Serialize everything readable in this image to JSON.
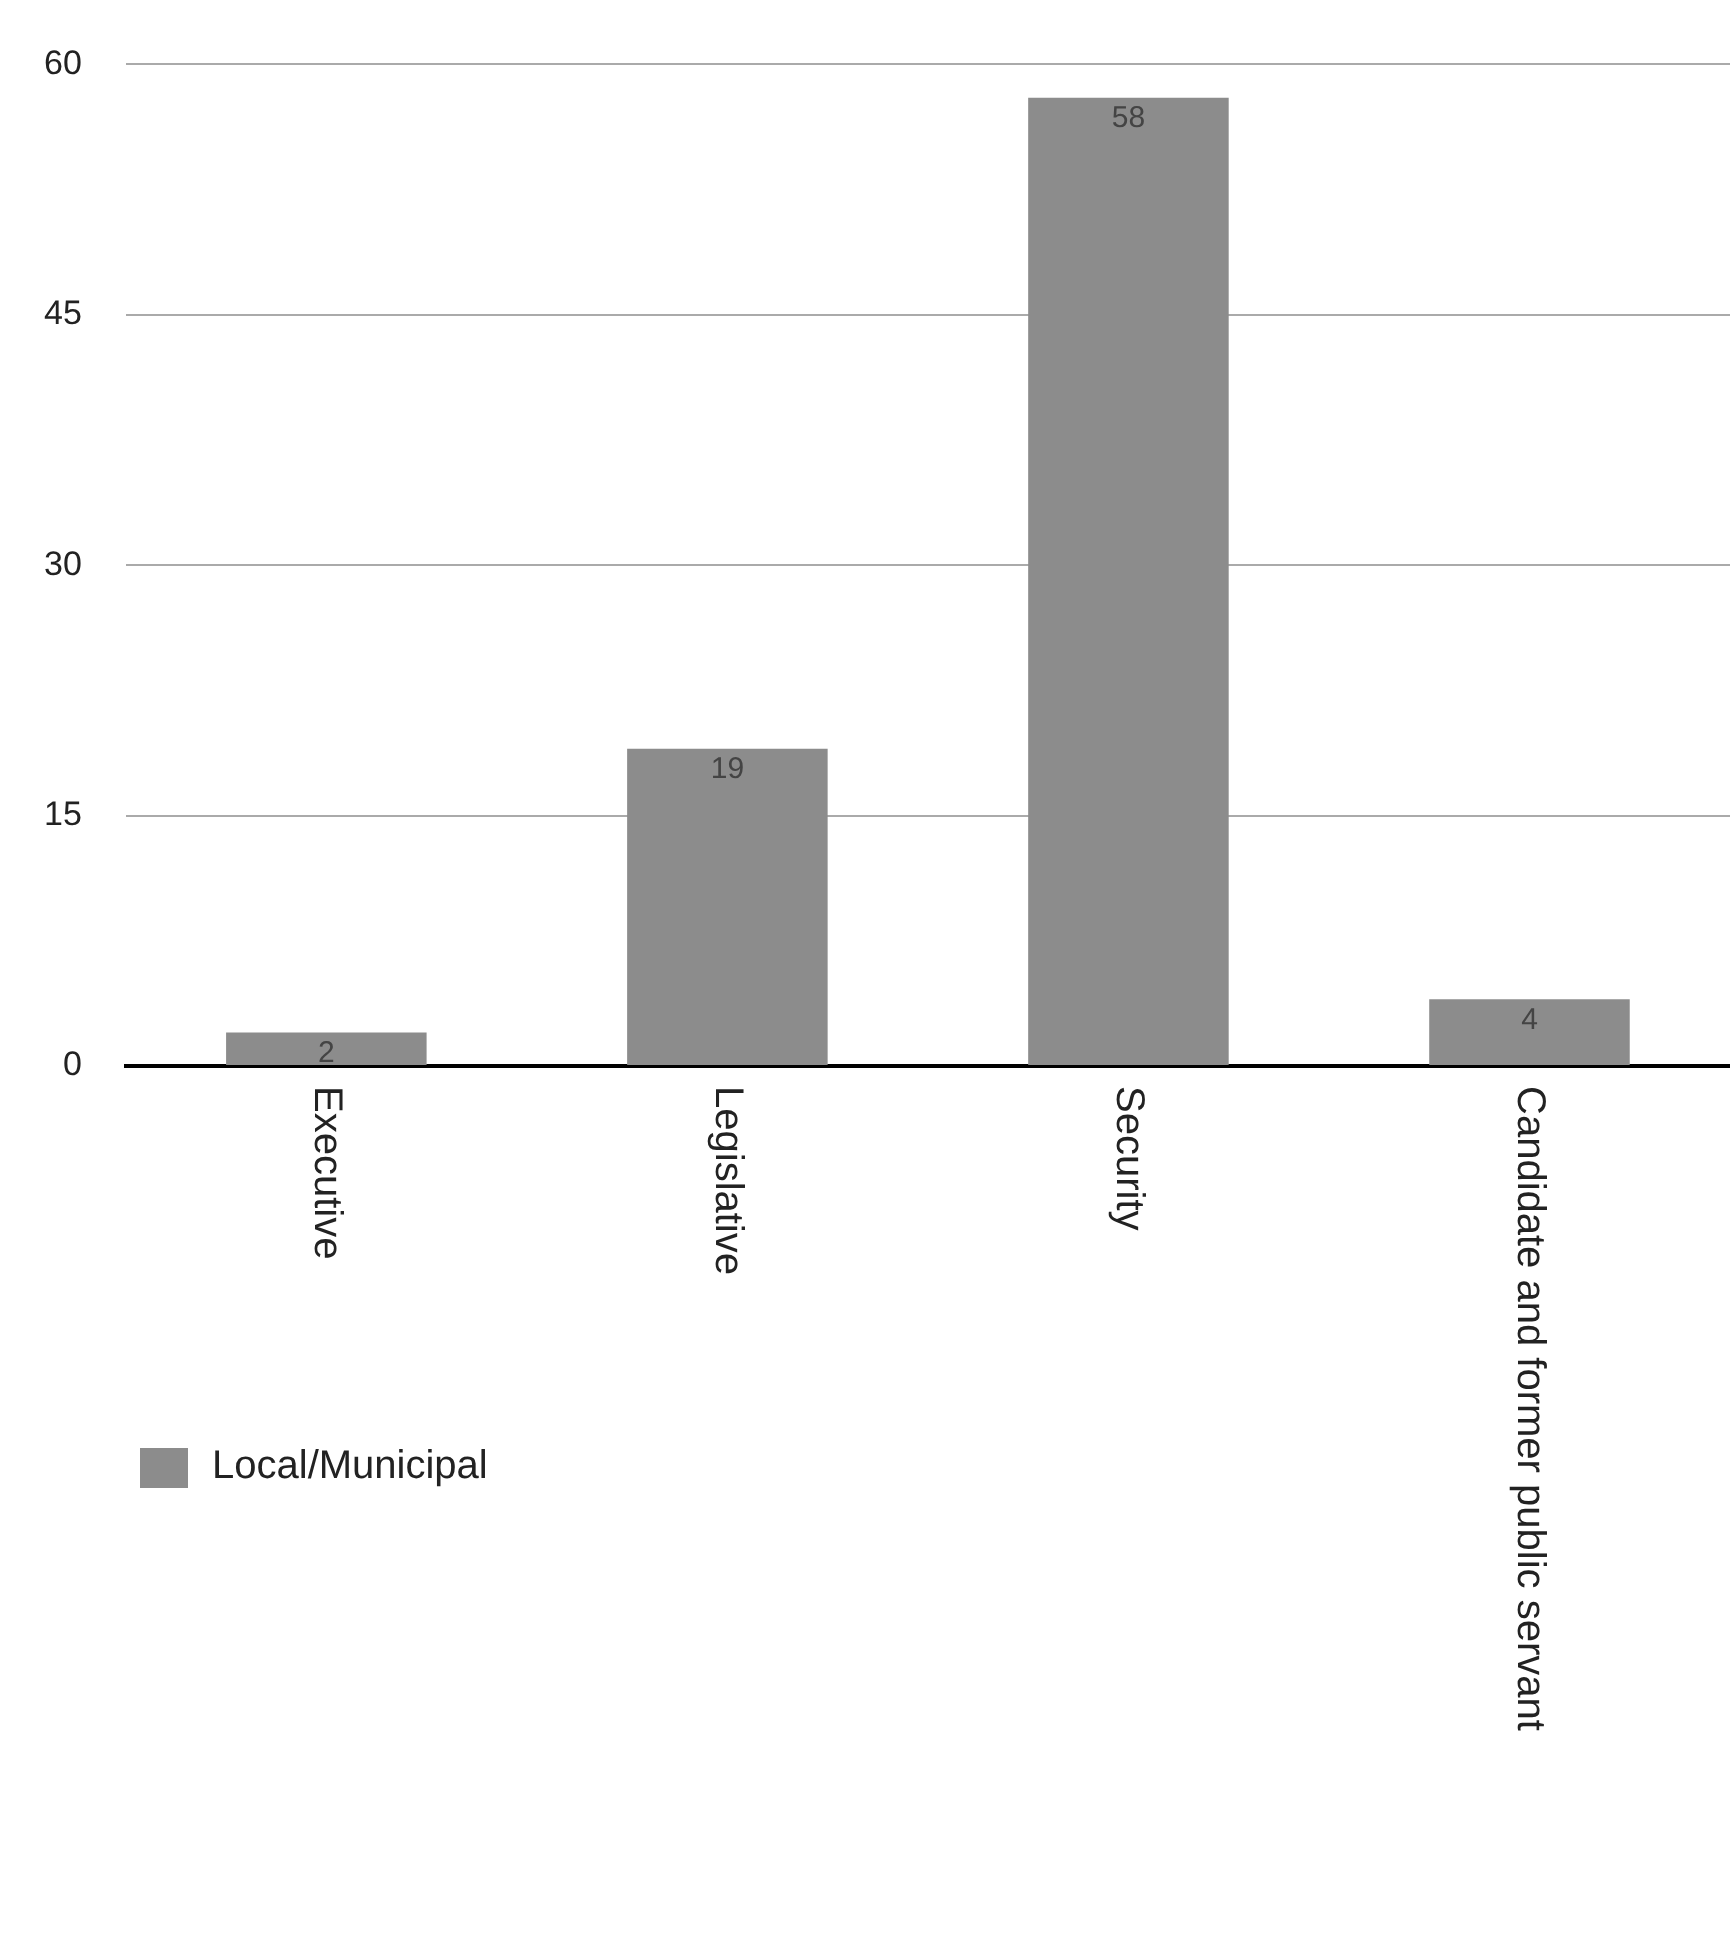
{
  "chart_data": {
    "type": "bar",
    "categories": [
      "Executive",
      "Legislative",
      "Security",
      "Candidate and former public servant"
    ],
    "series": [
      {
        "name": "Local/Municipal",
        "color": "#8c8c8c",
        "values": [
          2,
          19,
          58,
          4
        ]
      }
    ],
    "ylim": [
      0,
      60
    ],
    "yticks": [
      0,
      15,
      30,
      45,
      60
    ],
    "grid": "y",
    "legend": "bottom left",
    "data_labels": true
  }
}
